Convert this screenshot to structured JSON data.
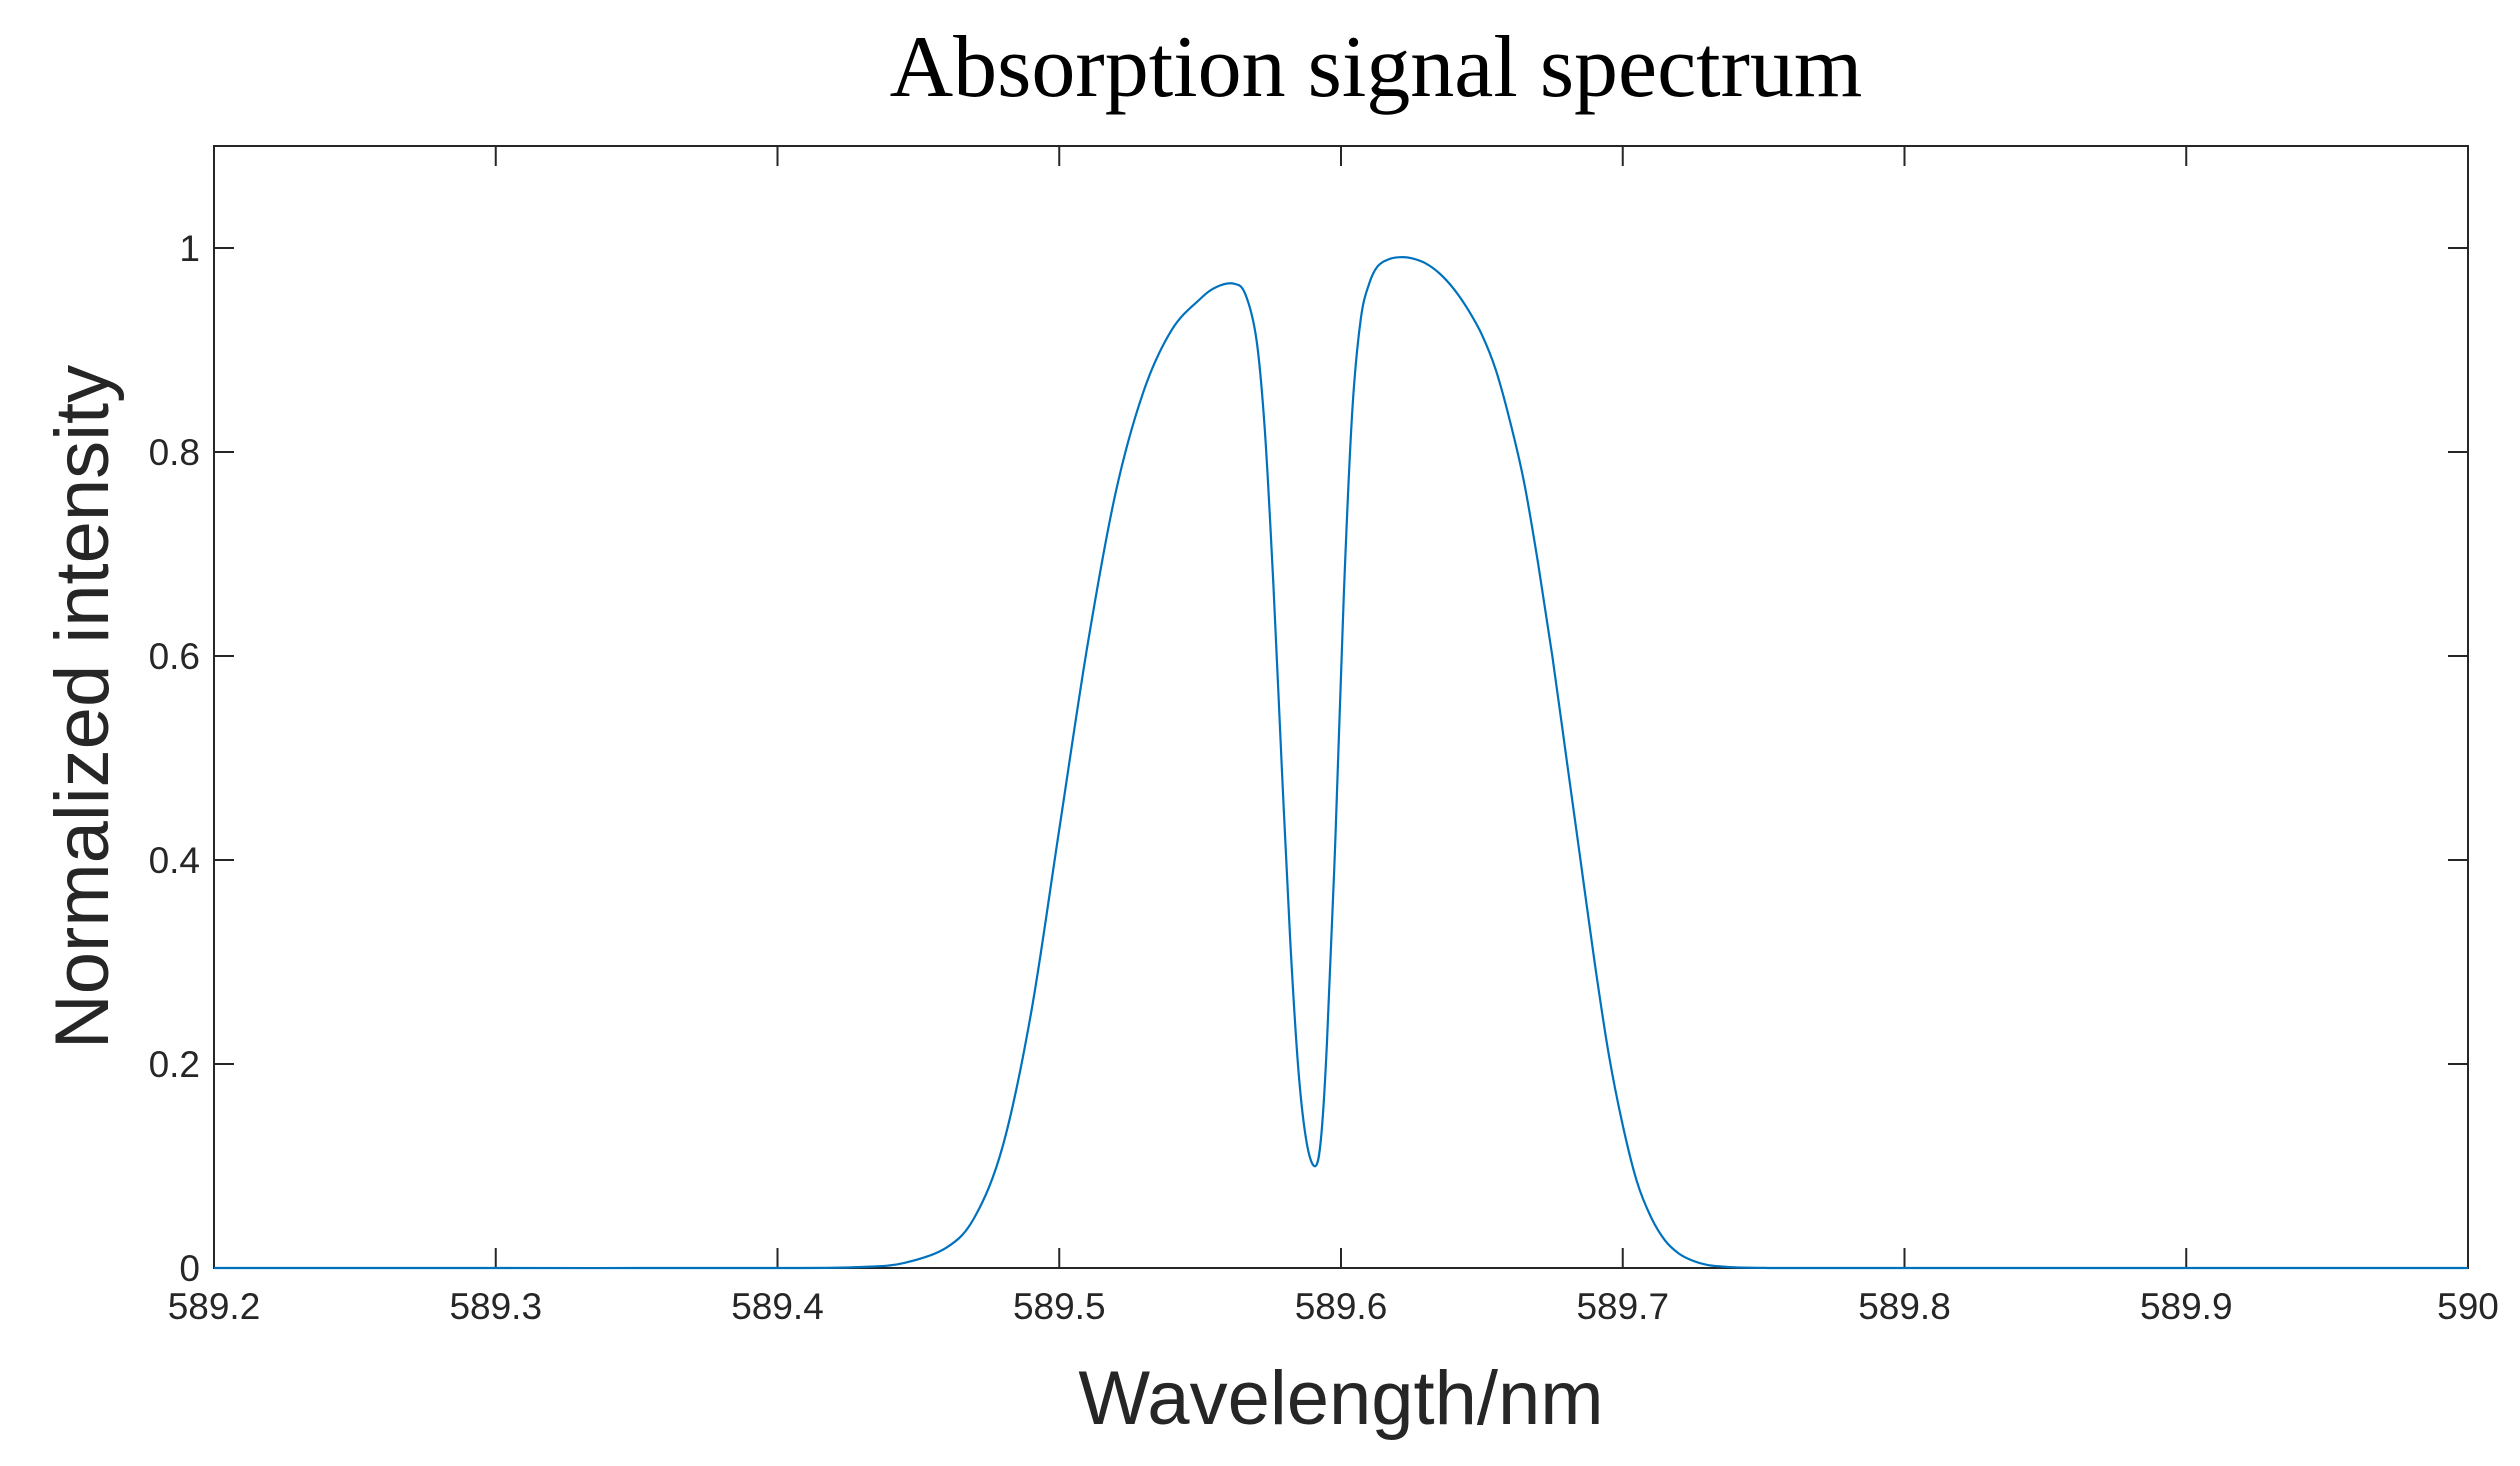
{
  "chart_data": {
    "type": "line",
    "title": "Absorption signal spectrum",
    "xlabel": "Wavelength/nm",
    "ylabel": "Normalized intensity",
    "xlim": [
      589.2,
      590
    ],
    "ylim": [
      0,
      1.1
    ],
    "xticks": [
      589.2,
      589.3,
      589.4,
      589.5,
      589.6,
      589.7,
      589.8,
      589.9,
      590
    ],
    "xtick_labels": [
      "589.2",
      "589.3",
      "589.4",
      "589.5",
      "589.6",
      "589.7",
      "589.8",
      "589.9",
      "590"
    ],
    "yticks": [
      0,
      0.2,
      0.4,
      0.6,
      0.8,
      1
    ],
    "ytick_labels": [
      "0",
      "0.2",
      "0.4",
      "0.6",
      "0.8",
      "1"
    ],
    "grid": false,
    "series": [
      {
        "name": "Absorption signal",
        "color": "#0072BD",
        "x": [
          589.2,
          589.3,
          589.4,
          589.43,
          589.445,
          589.46,
          589.47,
          589.48,
          589.49,
          589.5,
          589.51,
          589.52,
          589.53,
          589.54,
          589.55,
          589.556,
          589.562,
          589.566,
          589.57,
          589.573,
          589.576,
          589.579,
          589.582,
          589.585,
          589.588,
          589.591,
          589.593,
          589.595,
          589.598,
          589.601,
          589.604,
          589.607,
          589.61,
          589.613,
          589.617,
          589.621,
          589.625,
          589.63,
          589.635,
          589.64,
          589.645,
          589.65,
          589.655,
          589.66,
          589.665,
          589.67,
          589.675,
          589.68,
          589.685,
          589.69,
          589.695,
          589.7,
          589.705,
          589.71,
          589.715,
          589.72,
          589.725,
          589.73,
          589.735,
          589.74,
          589.75,
          589.76,
          589.8,
          589.9,
          590.0
        ],
        "y": [
          0,
          0,
          0,
          0.001,
          0.005,
          0.02,
          0.05,
          0.12,
          0.25,
          0.43,
          0.61,
          0.76,
          0.86,
          0.92,
          0.95,
          0.962,
          0.965,
          0.955,
          0.91,
          0.82,
          0.67,
          0.49,
          0.32,
          0.19,
          0.12,
          0.1,
          0.13,
          0.22,
          0.42,
          0.66,
          0.84,
          0.93,
          0.965,
          0.982,
          0.989,
          0.991,
          0.99,
          0.985,
          0.975,
          0.96,
          0.94,
          0.915,
          0.88,
          0.83,
          0.77,
          0.69,
          0.6,
          0.5,
          0.4,
          0.3,
          0.21,
          0.14,
          0.085,
          0.05,
          0.027,
          0.014,
          0.007,
          0.003,
          0.0015,
          0.0006,
          0.0001,
          0,
          0,
          0,
          0
        ]
      }
    ]
  }
}
